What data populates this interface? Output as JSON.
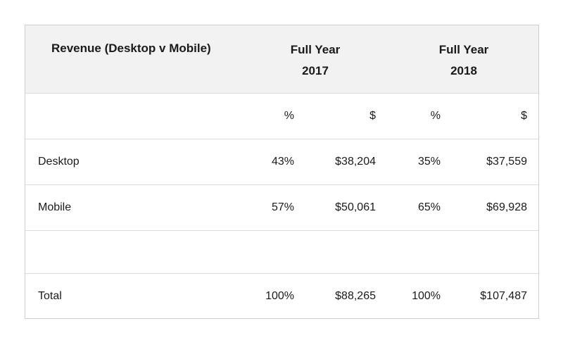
{
  "chart_data": {
    "type": "table",
    "title": "Revenue (Desktop v Mobile)",
    "column_groups": [
      {
        "line1": "Full Year",
        "line2": "2017"
      },
      {
        "line1": "Full Year",
        "line2": "2018"
      }
    ],
    "unit_headers": [
      "%",
      "$",
      "%",
      "$"
    ],
    "rows": [
      {
        "label": "Desktop",
        "cells": [
          "43%",
          "$38,204",
          "35%",
          "$37,559"
        ]
      },
      {
        "label": "Mobile",
        "cells": [
          "57%",
          "$50,061",
          "65%",
          "$69,928"
        ]
      },
      {
        "label": "",
        "cells": [
          "",
          "",
          "",
          ""
        ]
      },
      {
        "label": "Total",
        "cells": [
          "100%",
          "$88,265",
          "100%",
          "$107,487"
        ]
      }
    ]
  }
}
